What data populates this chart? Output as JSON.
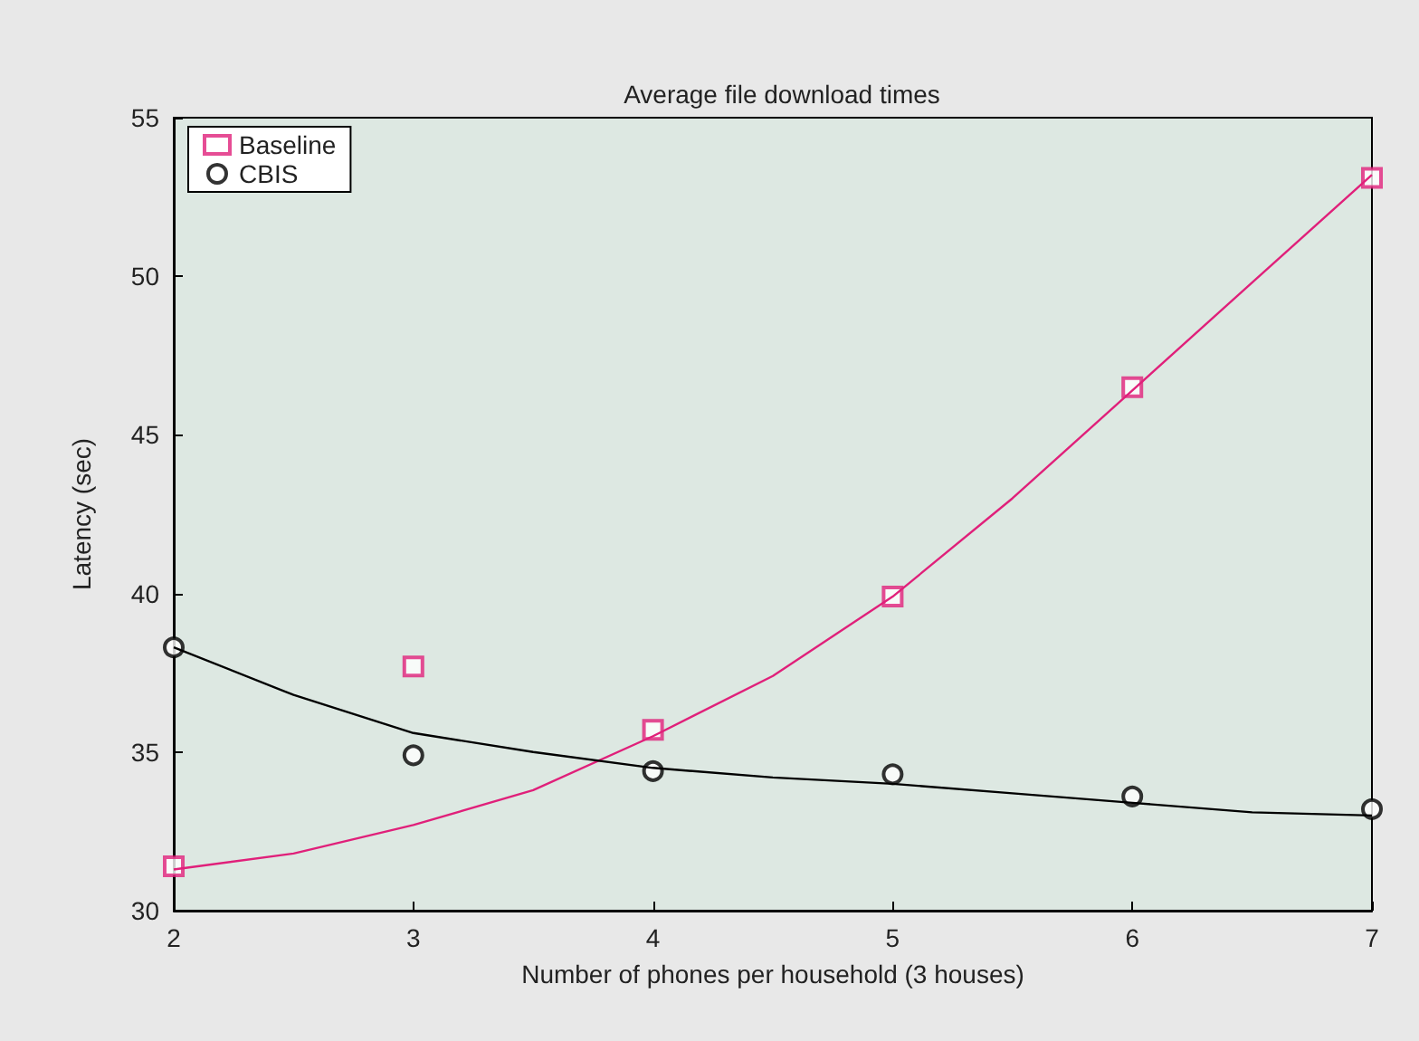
{
  "chart_data": {
    "type": "scatter",
    "title": "Average file download times",
    "xlabel": "Number of phones per household (3 houses)",
    "ylabel": "Latency (sec)",
    "xlim": [
      2,
      7
    ],
    "xticks": [
      2,
      3,
      4,
      5,
      6,
      7
    ],
    "ylim": [
      30,
      55
    ],
    "yticks": [
      30,
      35,
      40,
      45,
      50,
      55
    ],
    "legend": "top left",
    "grid": false,
    "series": [
      {
        "name": "Baseline",
        "marker": "square",
        "color": "#e0207a",
        "x": [
          2,
          3,
          4,
          5,
          6,
          7
        ],
        "values": [
          31.4,
          37.7,
          35.7,
          39.9,
          46.5,
          53.1
        ]
      },
      {
        "name": "CBIS",
        "marker": "circle",
        "color": "#000000",
        "x": [
          2,
          3,
          4,
          5,
          6,
          7
        ],
        "values": [
          38.3,
          34.9,
          34.4,
          34.3,
          33.6,
          33.2
        ]
      },
      {
        "type": "line",
        "marker": "none",
        "color": "#e0207a",
        "x": [
          2,
          2.5,
          3,
          3.5,
          4,
          4.5,
          5,
          5.5,
          6,
          6.5,
          7
        ],
        "values": [
          31.3,
          31.8,
          32.7,
          33.8,
          35.5,
          37.4,
          39.9,
          43,
          46.4,
          49.8,
          53.2
        ]
      },
      {
        "type": "line",
        "marker": "none",
        "color": "#000000",
        "x": [
          2,
          2.5,
          3,
          3.5,
          4,
          4.5,
          5,
          5.5,
          6,
          6.5,
          7
        ],
        "values": [
          38.3,
          36.8,
          35.6,
          35,
          34.5,
          34.2,
          34,
          33.7,
          33.4,
          33.1,
          33
        ]
      }
    ]
  }
}
